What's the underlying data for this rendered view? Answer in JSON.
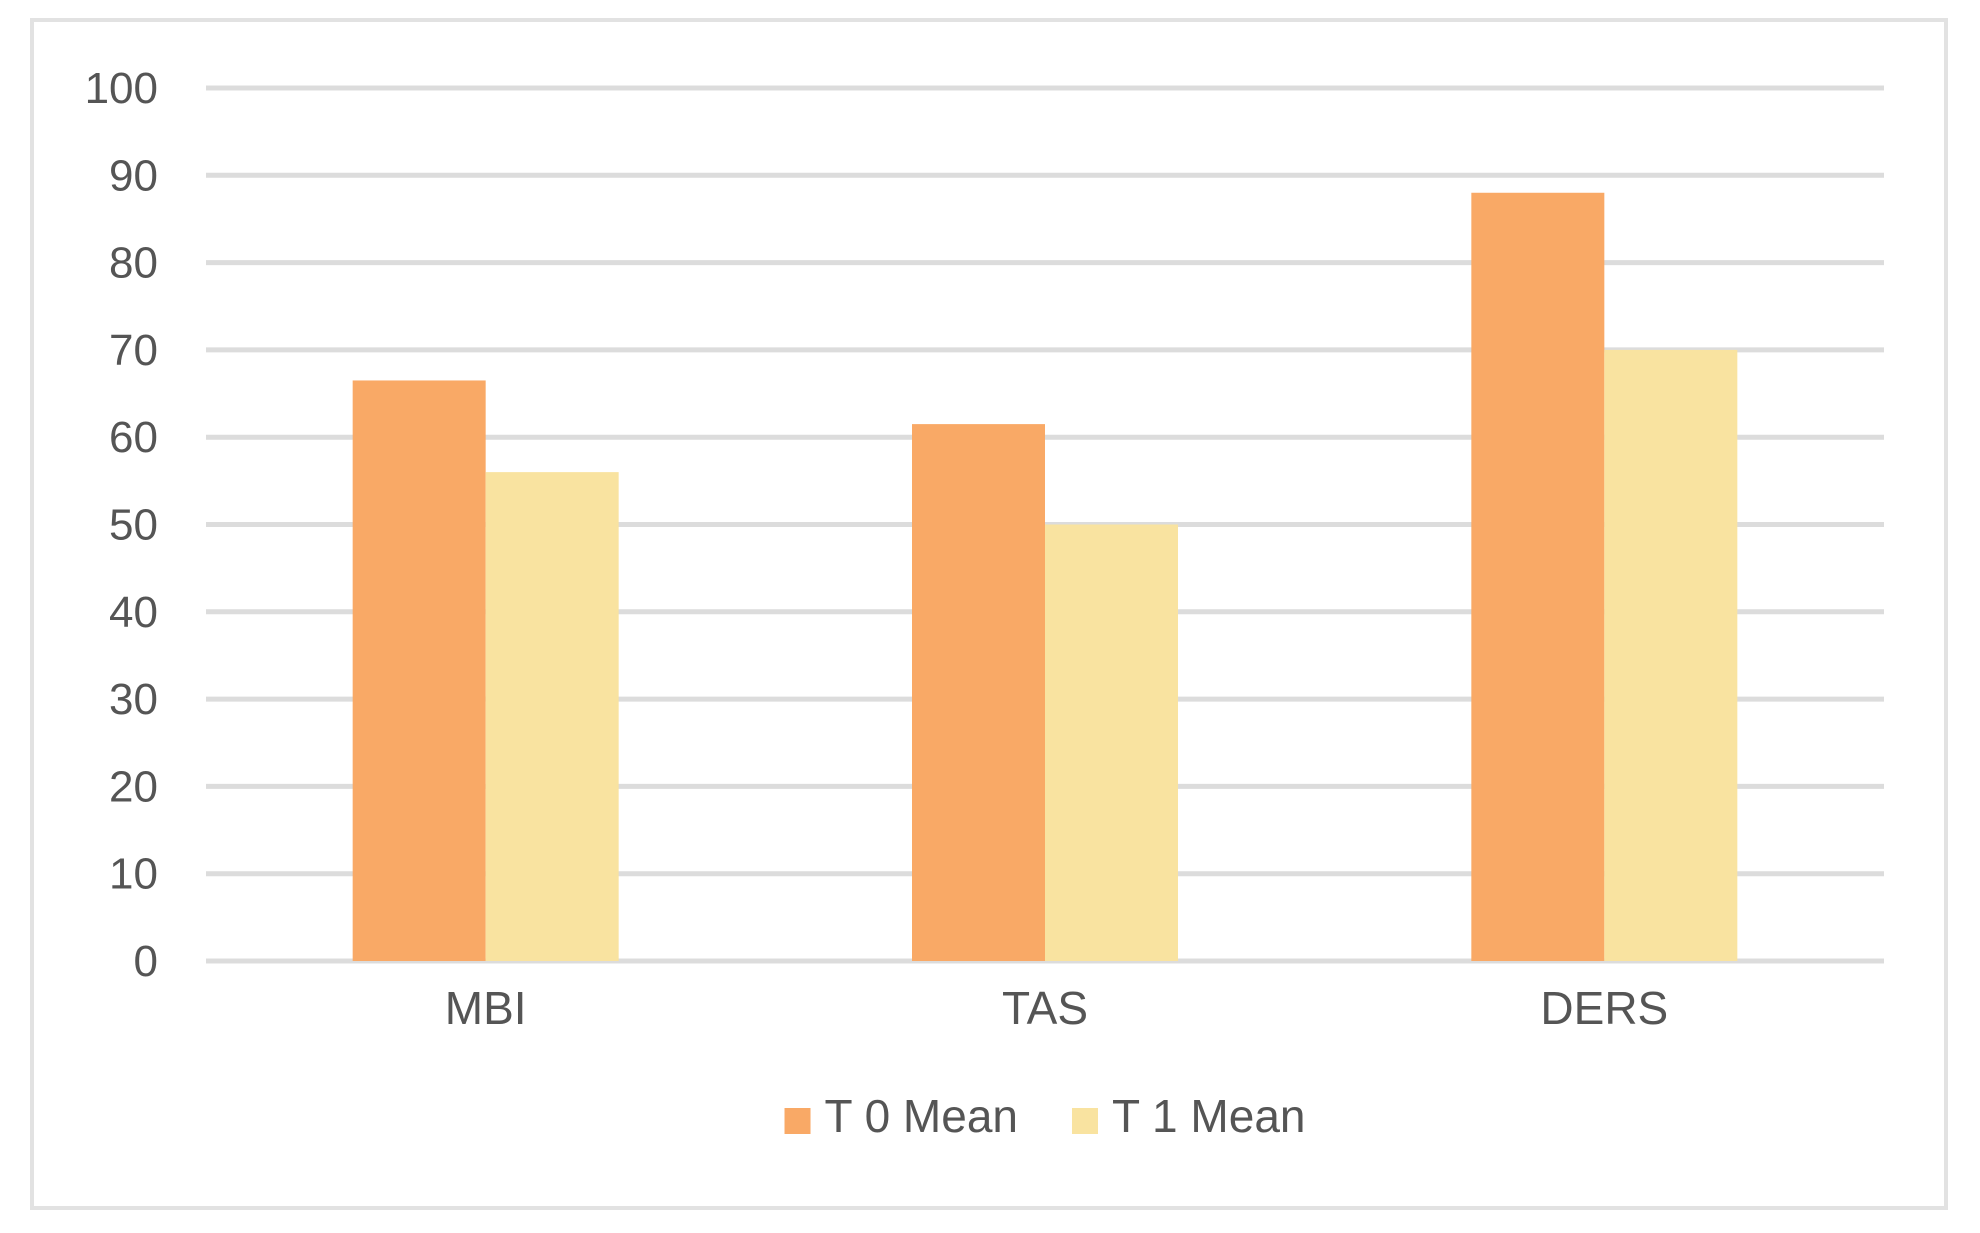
{
  "chart_data": {
    "type": "bar",
    "title": "",
    "xlabel": "",
    "ylabel": "",
    "ylim": [
      0,
      100
    ],
    "yticks": [
      0,
      10,
      20,
      30,
      40,
      50,
      60,
      70,
      80,
      90,
      100
    ],
    "categories": [
      "MBI",
      "TAS",
      "DERS"
    ],
    "series": [
      {
        "name": "T 0 Mean",
        "values": [
          66.5,
          61.5,
          88
        ],
        "color": "#f9a966"
      },
      {
        "name": "T 1 Mean",
        "values": [
          56,
          50,
          70
        ],
        "color": "#f9e3a0"
      }
    ],
    "grid": true,
    "legend_position": "bottom"
  }
}
